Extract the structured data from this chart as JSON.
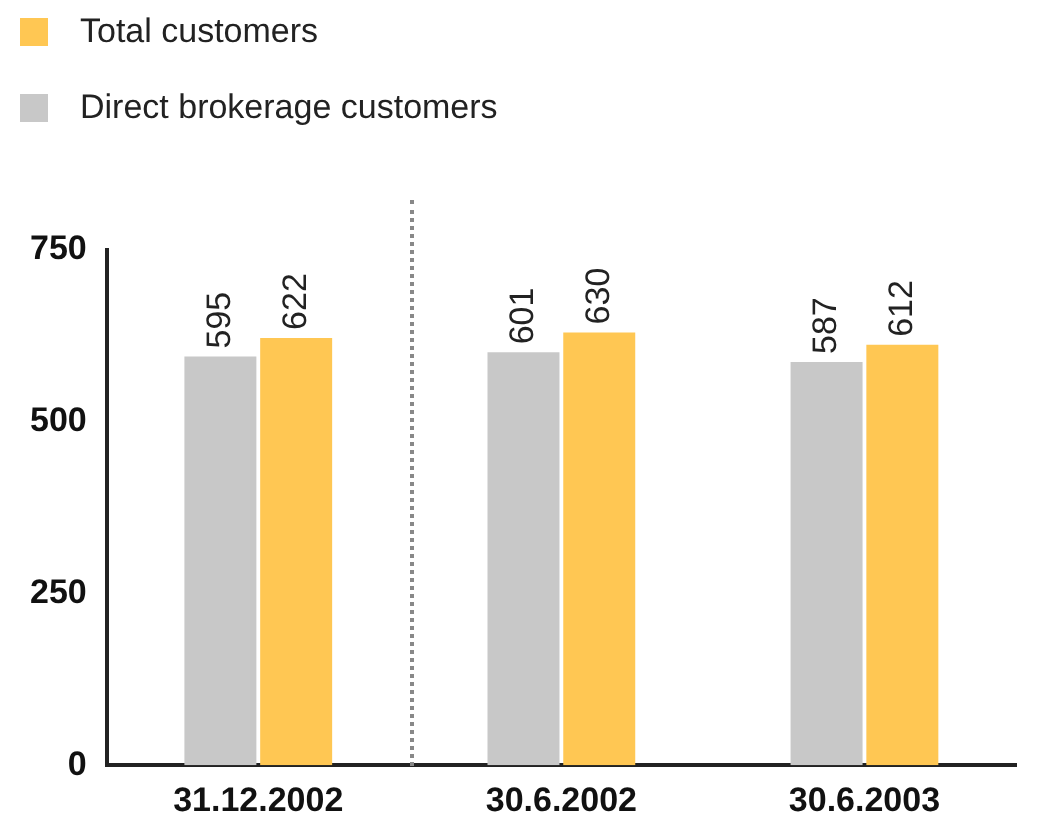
{
  "chart_data": {
    "type": "bar",
    "categories": [
      "31.12.2002",
      "30.6.2002",
      "30.6.2003"
    ],
    "series": [
      {
        "name": "Direct brokerage customers",
        "color": "#c8c8c8",
        "values": [
          595,
          601,
          587
        ]
      },
      {
        "name": "Total customers",
        "color": "#ffc753",
        "values": [
          622,
          630,
          612
        ]
      }
    ],
    "ylim": [
      0,
      750
    ],
    "yticks": [
      0,
      250,
      500,
      750
    ],
    "grid": false,
    "legend": "top left",
    "data_labels": true
  }
}
